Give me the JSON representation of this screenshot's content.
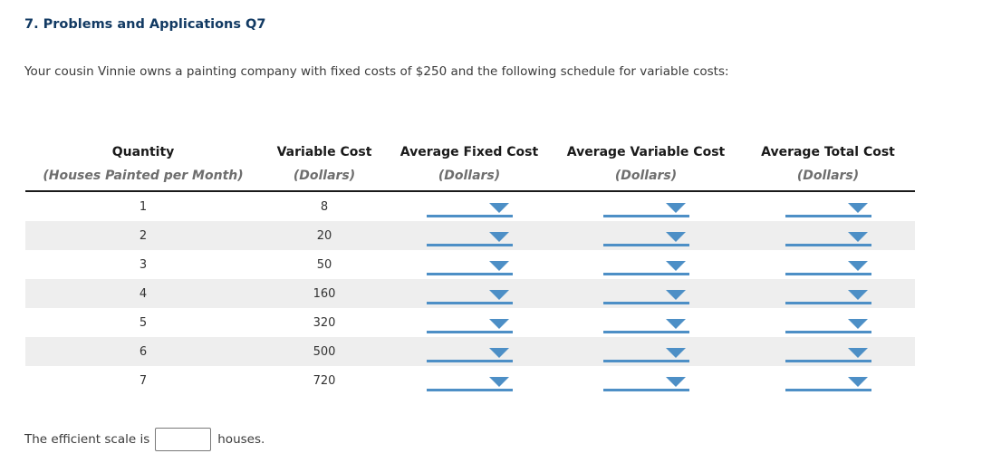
{
  "header": {
    "title": "7. Problems and Applications Q7"
  },
  "intro_text": "Your cousin Vinnie owns a painting company with fixed costs of $250 and the following schedule for variable costs:",
  "table": {
    "columns": [
      {
        "label": "Quantity",
        "sublabel": "(Houses Painted per Month)"
      },
      {
        "label": "Variable Cost",
        "sublabel": "(Dollars)"
      },
      {
        "label": "Average Fixed Cost",
        "sublabel": "(Dollars)"
      },
      {
        "label": "Average Variable Cost",
        "sublabel": "(Dollars)"
      },
      {
        "label": "Average Total Cost",
        "sublabel": "(Dollars)"
      }
    ],
    "rows": [
      {
        "quantity": "1",
        "variable_cost": "8"
      },
      {
        "quantity": "2",
        "variable_cost": "20"
      },
      {
        "quantity": "3",
        "variable_cost": "50"
      },
      {
        "quantity": "4",
        "variable_cost": "160"
      },
      {
        "quantity": "5",
        "variable_cost": "320"
      },
      {
        "quantity": "6",
        "variable_cost": "500"
      },
      {
        "quantity": "7",
        "variable_cost": "720"
      }
    ],
    "dropdown_icon": "chevron-down",
    "dropdown_selected_value": ""
  },
  "footer": {
    "text_before_input": "The efficient scale is",
    "input_value": "",
    "text_after_input": "houses."
  },
  "colors": {
    "title_blue": "#123a63",
    "dropdown_blue": "#4d8fc6",
    "row_stripe": "#eeeeee",
    "header_rule": "#1a1a1a"
  }
}
